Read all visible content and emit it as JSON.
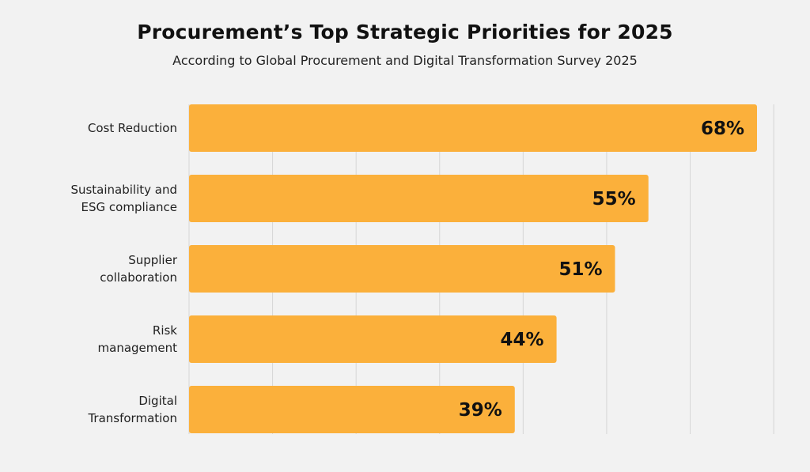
{
  "title": "Procurement’s Top Strategic Priorities for 2025",
  "subtitle": "According to Global Procurement and Digital Transformation Survey 2025",
  "colors": {
    "background": "#f2f2f2",
    "bar": "#fbb03b",
    "grid": "#d6d6d6"
  },
  "chart_data": {
    "type": "bar",
    "orientation": "horizontal",
    "title": "Procurement’s Top Strategic Priorities for 2025",
    "subtitle": "According to Global Procurement and Digital Transformation Survey 2025",
    "categories": [
      [
        "Cost Reduction"
      ],
      [
        "Sustainability and",
        "ESG compliance"
      ],
      [
        "Supplier",
        "collaboration"
      ],
      [
        "Risk",
        "management"
      ],
      [
        "Digital",
        "Transformation"
      ]
    ],
    "values": [
      68,
      55,
      51,
      44,
      39
    ],
    "value_labels": [
      "68%",
      "55%",
      "51%",
      "44%",
      "39%"
    ],
    "xlim": [
      0,
      70
    ],
    "grid": true,
    "legend": "none"
  }
}
